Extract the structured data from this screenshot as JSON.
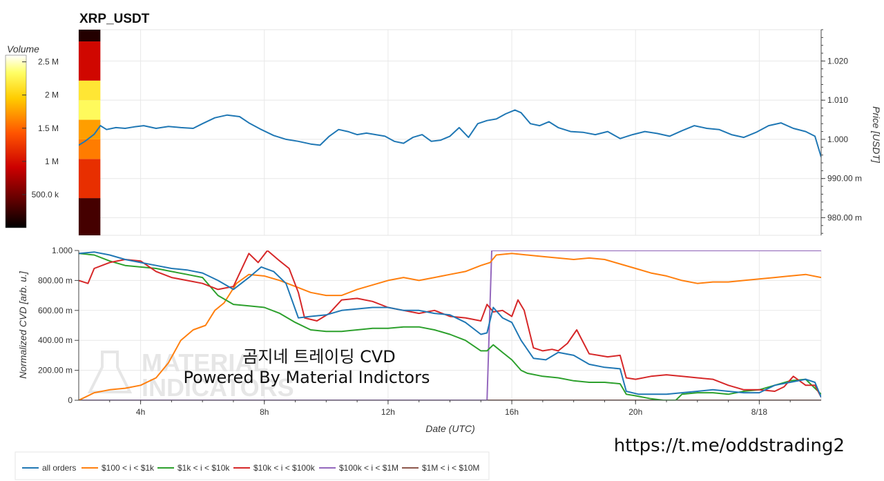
{
  "chart_data": [
    {
      "type": "line",
      "title": "XRP_USDT",
      "ylabel": "Price [USDT]",
      "ylim": [
        0.9755,
        1.028
      ],
      "yticks": [
        "980.00 m",
        "990.00 m",
        "1.000",
        "1.010",
        "1.020"
      ],
      "ytick_values": [
        0.98,
        0.99,
        1.0,
        1.01,
        1.02
      ],
      "y_axis_side": "right",
      "xlim_hours": [
        1.5,
        25.5
      ],
      "series": [
        {
          "color": "#1f77b4",
          "x_hours": [
            1.5,
            1.7,
            2.0,
            2.2,
            2.4,
            2.7,
            3.0,
            3.3,
            3.6,
            4.0,
            4.4,
            4.8,
            5.2,
            5.5,
            5.9,
            6.3,
            6.7,
            7.0,
            7.4,
            7.8,
            8.2,
            8.6,
            9.0,
            9.3,
            9.6,
            9.9,
            10.2,
            10.5,
            10.8,
            11.1,
            11.4,
            11.7,
            12.0,
            12.3,
            12.6,
            12.9,
            13.2,
            13.5,
            13.8,
            14.1,
            14.4,
            14.7,
            15.0,
            15.3,
            15.6,
            15.8,
            16.1,
            16.4,
            16.7,
            17.0,
            17.4,
            17.8,
            18.2,
            18.6,
            19.0,
            19.4,
            19.8,
            20.2,
            20.6,
            21.0,
            21.4,
            21.8,
            22.2,
            22.6,
            23.0,
            23.4,
            23.8,
            24.2,
            24.6,
            25.0,
            25.3,
            25.5
          ],
          "values": [
            0.9985,
            0.9995,
            1.0013,
            1.0035,
            1.0025,
            1.003,
            1.0028,
            1.0032,
            1.0035,
            1.0028,
            1.0033,
            1.003,
            1.0028,
            1.004,
            1.0055,
            1.0062,
            1.0058,
            1.0042,
            1.0025,
            1.001,
            1.0,
            0.9995,
            0.9988,
            0.9985,
            1.0008,
            1.0025,
            1.002,
            1.0012,
            1.0016,
            1.0012,
            1.0008,
            0.9995,
            0.999,
            1.0005,
            1.0012,
            0.9995,
            0.9998,
            1.0008,
            1.003,
            1.0005,
            1.004,
            1.0048,
            1.0052,
            1.0065,
            1.0075,
            1.0068,
            1.004,
            1.0035,
            1.0045,
            1.003,
            1.002,
            1.0018,
            1.0012,
            1.002,
            1.0002,
            1.0012,
            1.002,
            1.0015,
            1.0008,
            1.0022,
            1.0035,
            1.0028,
            1.0025,
            1.0012,
            1.0005,
            1.0018,
            1.0035,
            1.0042,
            1.0028,
            1.002,
            1.0008,
            0.9955
          ]
        }
      ],
      "colorbar": {
        "label": "Volume",
        "ticks": [
          "500.0 k",
          "1 M",
          "1.5 M",
          "2 M",
          "2.5 M"
        ],
        "tick_values": [
          500000,
          1000000,
          1500000,
          2000000,
          2500000
        ],
        "range": [
          0,
          2600000
        ]
      },
      "volume_profile": {
        "x_hours": [
          1.5,
          2.2
        ],
        "bins_price": [
          {
            "from": 0.9755,
            "to": 0.985,
            "volume": 300000
          },
          {
            "from": 0.985,
            "to": 0.995,
            "volume": 1200000
          },
          {
            "from": 0.995,
            "to": 1.0,
            "volume": 1600000
          },
          {
            "from": 1.0,
            "to": 1.005,
            "volume": 1750000
          },
          {
            "from": 1.005,
            "to": 1.01,
            "volume": 2300000
          },
          {
            "from": 1.01,
            "to": 1.015,
            "volume": 2150000
          },
          {
            "from": 1.015,
            "to": 1.025,
            "volume": 950000
          },
          {
            "from": 1.025,
            "to": 1.028,
            "volume": 150000
          }
        ]
      }
    },
    {
      "type": "line",
      "xlabel": "Date (UTC)",
      "ylabel": "Normalized CVD [arb. u.]",
      "ylim": [
        0,
        1.0
      ],
      "yticks": [
        "0",
        "200.00 m",
        "400.00 m",
        "600.00 m",
        "800.00 m",
        "1.000"
      ],
      "ytick_values": [
        0,
        0.2,
        0.4,
        0.6,
        0.8,
        1.0
      ],
      "xlim_hours": [
        1.5,
        25.5
      ],
      "xticks": [
        "4h",
        "8h",
        "12h",
        "16h",
        "20h",
        "8/18"
      ],
      "xtick_values": [
        3.5,
        7.5,
        11.5,
        15.5,
        19.5,
        23.5
      ],
      "legend_position": "bottom-left",
      "series": [
        {
          "name": "all orders",
          "color": "#1f77b4",
          "x_hours": [
            1.5,
            2.0,
            2.5,
            3.0,
            3.5,
            4.0,
            4.5,
            5.0,
            5.5,
            6.0,
            6.5,
            7.0,
            7.4,
            7.8,
            8.2,
            8.6,
            9.0,
            9.5,
            10.0,
            10.5,
            11.0,
            11.5,
            12.0,
            12.5,
            13.0,
            13.5,
            14.0,
            14.5,
            14.7,
            14.9,
            15.2,
            15.5,
            15.8,
            16.2,
            16.6,
            17.0,
            17.5,
            18.0,
            18.5,
            19.0,
            19.2,
            19.6,
            20.0,
            20.5,
            21.0,
            21.5,
            22.0,
            22.5,
            23.0,
            23.5,
            24.0,
            24.5,
            25.0,
            25.3,
            25.5
          ],
          "values": [
            0.98,
            0.99,
            0.97,
            0.94,
            0.92,
            0.9,
            0.88,
            0.87,
            0.85,
            0.8,
            0.74,
            0.82,
            0.89,
            0.86,
            0.78,
            0.55,
            0.56,
            0.57,
            0.6,
            0.61,
            0.62,
            0.62,
            0.6,
            0.6,
            0.58,
            0.57,
            0.52,
            0.44,
            0.45,
            0.62,
            0.55,
            0.52,
            0.4,
            0.28,
            0.27,
            0.32,
            0.3,
            0.24,
            0.22,
            0.21,
            0.06,
            0.04,
            0.04,
            0.04,
            0.05,
            0.06,
            0.07,
            0.06,
            0.05,
            0.05,
            0.1,
            0.12,
            0.14,
            0.12,
            0.02
          ]
        },
        {
          "name": "$100 < i < $1k",
          "color": "#ff7f0e",
          "x_hours": [
            1.5,
            1.7,
            2.0,
            2.5,
            3.0,
            3.5,
            4.0,
            4.4,
            4.8,
            5.2,
            5.6,
            5.9,
            6.2,
            6.6,
            7.0,
            7.5,
            8.0,
            8.5,
            9.0,
            9.5,
            10.0,
            10.5,
            11.0,
            11.5,
            12.0,
            12.5,
            13.0,
            13.5,
            14.0,
            14.5,
            14.8,
            15.0,
            15.5,
            16.0,
            16.5,
            17.0,
            17.5,
            18.0,
            18.5,
            19.0,
            19.5,
            20.0,
            20.5,
            21.0,
            21.5,
            22.0,
            22.5,
            23.0,
            23.5,
            24.0,
            24.5,
            25.0,
            25.5
          ],
          "values": [
            0.0,
            0.02,
            0.05,
            0.07,
            0.08,
            0.1,
            0.15,
            0.25,
            0.4,
            0.47,
            0.5,
            0.6,
            0.65,
            0.78,
            0.84,
            0.83,
            0.8,
            0.76,
            0.72,
            0.7,
            0.7,
            0.74,
            0.77,
            0.8,
            0.82,
            0.8,
            0.82,
            0.84,
            0.86,
            0.9,
            0.92,
            0.97,
            0.98,
            0.97,
            0.96,
            0.95,
            0.94,
            0.95,
            0.94,
            0.91,
            0.88,
            0.85,
            0.83,
            0.8,
            0.78,
            0.79,
            0.79,
            0.8,
            0.81,
            0.82,
            0.83,
            0.84,
            0.82
          ]
        },
        {
          "name": "$1k < i < $10k",
          "color": "#2ca02c",
          "x_hours": [
            1.5,
            2.0,
            2.5,
            3.0,
            3.5,
            4.0,
            4.5,
            5.0,
            5.5,
            6.0,
            6.5,
            7.0,
            7.5,
            8.0,
            8.5,
            9.0,
            9.5,
            10.0,
            10.5,
            11.0,
            11.5,
            12.0,
            12.5,
            13.0,
            13.5,
            14.0,
            14.5,
            14.7,
            14.9,
            15.2,
            15.5,
            15.8,
            16.0,
            16.5,
            17.0,
            17.5,
            18.0,
            18.5,
            19.0,
            19.2,
            19.5,
            20.0,
            20.4,
            20.8,
            21.0,
            21.5,
            22.0,
            22.5,
            23.0,
            23.5,
            24.0,
            24.5,
            25.0,
            25.5
          ],
          "values": [
            0.98,
            0.97,
            0.93,
            0.9,
            0.89,
            0.88,
            0.86,
            0.84,
            0.82,
            0.7,
            0.64,
            0.63,
            0.62,
            0.58,
            0.52,
            0.47,
            0.46,
            0.46,
            0.47,
            0.48,
            0.48,
            0.49,
            0.49,
            0.47,
            0.44,
            0.4,
            0.33,
            0.33,
            0.37,
            0.32,
            0.27,
            0.2,
            0.18,
            0.16,
            0.15,
            0.13,
            0.12,
            0.12,
            0.11,
            0.04,
            0.03,
            0.01,
            0.0,
            0.0,
            0.04,
            0.05,
            0.05,
            0.04,
            0.06,
            0.07,
            0.1,
            0.13,
            0.14,
            0.04
          ]
        },
        {
          "name": "$10k < i < $100k",
          "color": "#d62728",
          "x_hours": [
            1.5,
            1.8,
            2.0,
            2.5,
            3.0,
            3.5,
            4.0,
            4.5,
            5.0,
            5.5,
            6.0,
            6.5,
            7.0,
            7.3,
            7.6,
            8.0,
            8.3,
            8.6,
            8.8,
            9.2,
            9.6,
            10.0,
            10.5,
            11.0,
            11.5,
            12.0,
            12.5,
            13.0,
            13.5,
            14.0,
            14.5,
            14.7,
            14.9,
            15.2,
            15.5,
            15.7,
            15.9,
            16.2,
            16.5,
            16.8,
            17.0,
            17.3,
            17.6,
            18.0,
            18.3,
            18.6,
            19.0,
            19.2,
            19.5,
            20.0,
            20.5,
            21.0,
            21.5,
            22.0,
            22.5,
            23.0,
            23.5,
            24.0,
            24.3,
            24.6,
            25.0,
            25.3,
            25.5
          ],
          "values": [
            0.8,
            0.78,
            0.88,
            0.92,
            0.94,
            0.93,
            0.86,
            0.82,
            0.8,
            0.78,
            0.74,
            0.76,
            0.98,
            0.92,
            1.0,
            0.93,
            0.88,
            0.72,
            0.55,
            0.53,
            0.58,
            0.67,
            0.68,
            0.66,
            0.62,
            0.6,
            0.58,
            0.6,
            0.56,
            0.55,
            0.53,
            0.64,
            0.59,
            0.6,
            0.56,
            0.67,
            0.6,
            0.35,
            0.33,
            0.34,
            0.33,
            0.38,
            0.47,
            0.31,
            0.3,
            0.29,
            0.3,
            0.15,
            0.14,
            0.16,
            0.17,
            0.16,
            0.15,
            0.14,
            0.1,
            0.07,
            0.07,
            0.06,
            0.09,
            0.16,
            0.1,
            0.1,
            0.02
          ]
        },
        {
          "name": "$100k < i < $1M",
          "color": "#9467bd",
          "x_hours": [
            1.5,
            14.7,
            14.85,
            25.5
          ],
          "values": [
            0.0,
            0.0,
            1.0,
            1.0
          ]
        },
        {
          "name": "$1M < i < $10M",
          "color": "#8c564b",
          "x_hours": [
            1.5,
            25.5
          ],
          "values": [
            0.0,
            0.0
          ]
        }
      ]
    }
  ],
  "overlay": {
    "line1": "곰지네 트레이딩 CVD",
    "line2": "Powered By Material Indictors"
  },
  "footer": {
    "telegram_link": "https://t.me/oddstrading2"
  },
  "watermark": {
    "line1": "MATERIAL",
    "line2": "INDICATORS"
  }
}
